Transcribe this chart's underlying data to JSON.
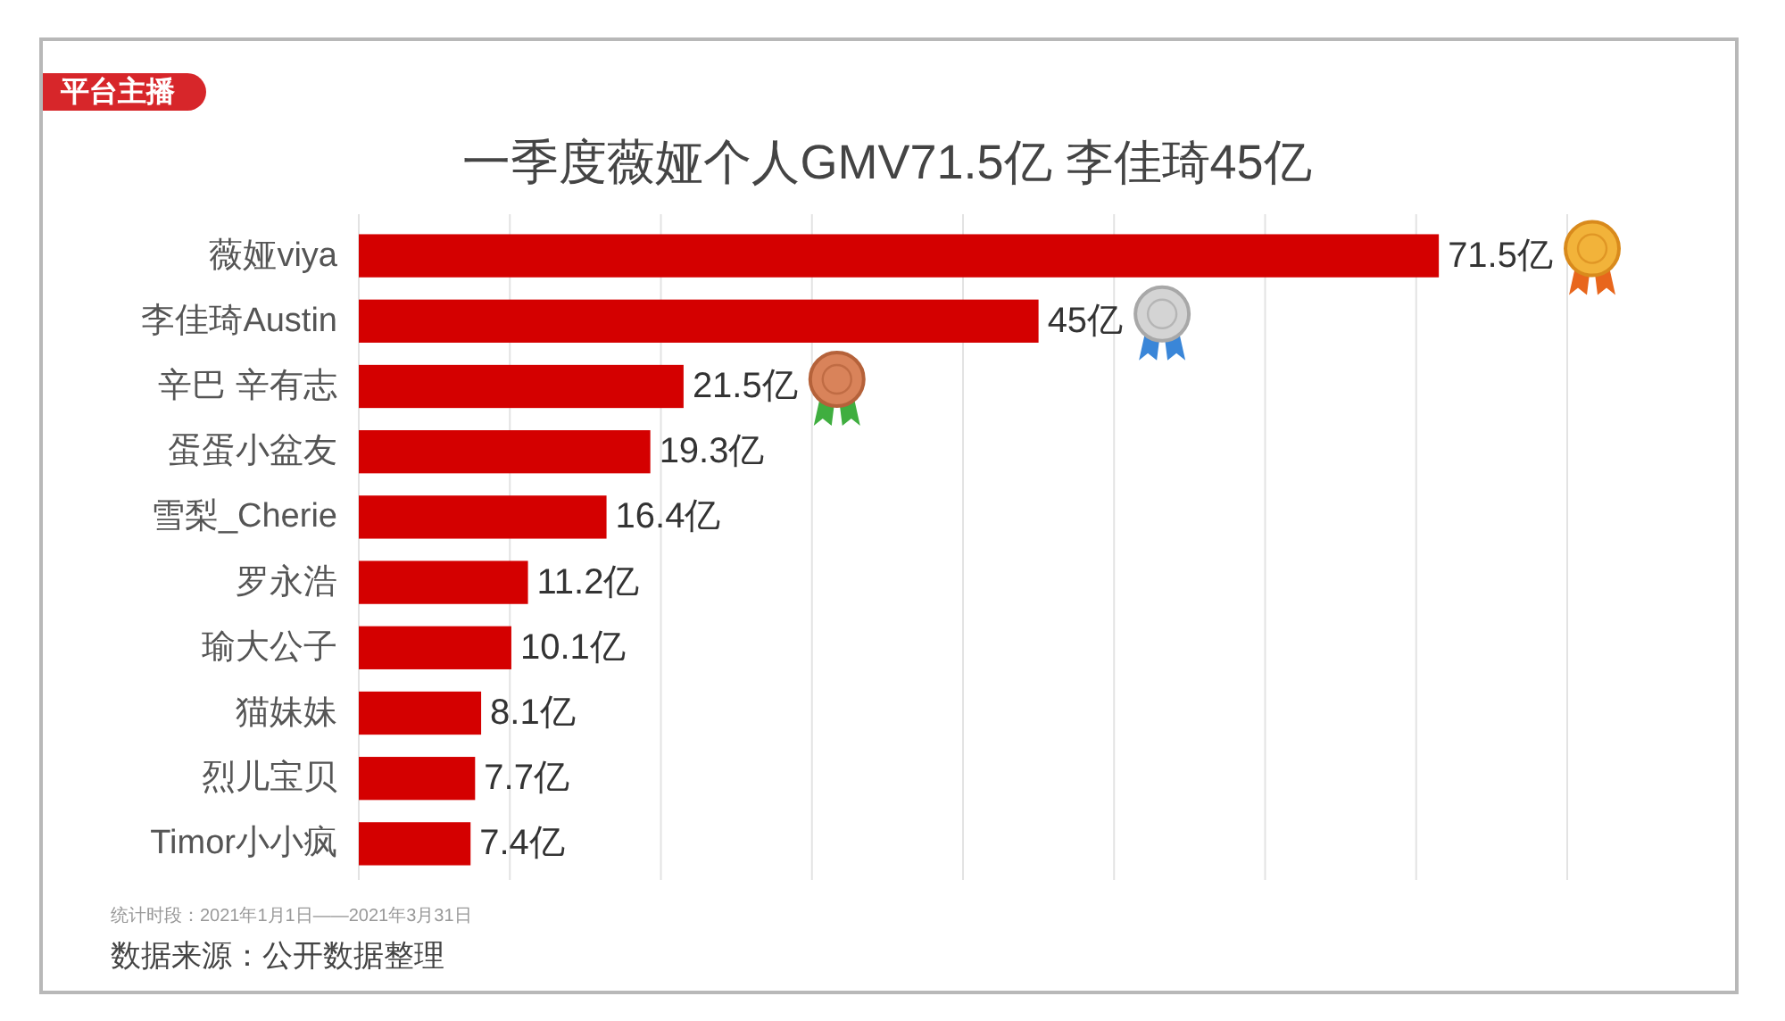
{
  "chart_data": {
    "type": "bar",
    "orientation": "horizontal",
    "title": "一季度薇娅个人GMV71.5亿 李佳琦45亿",
    "categories": [
      "薇娅viya",
      "李佳琦Austin",
      "辛巴 辛有志",
      "蛋蛋小盆友",
      "雪梨_Cherie",
      "罗永浩",
      "瑜大公子",
      "猫妹妹",
      "烈儿宝贝",
      "Timor小小疯"
    ],
    "values": [
      71.5,
      45,
      21.5,
      19.3,
      16.4,
      11.2,
      10.1,
      8.1,
      7.7,
      7.4
    ],
    "value_labels": [
      "71.5亿",
      "45亿",
      "21.5亿",
      "19.3亿",
      "16.4亿",
      "11.2亿",
      "10.1亿",
      "8.1亿",
      "7.7亿",
      "7.4亿"
    ],
    "color": "#d40000",
    "xlim": [
      0,
      80
    ],
    "xticks": [
      {
        "value": 0,
        "label": null
      },
      {
        "value": 10,
        "label": null
      },
      {
        "value": 20,
        "label": null
      },
      {
        "value": 30,
        "label": null
      },
      {
        "value": 40,
        "label": null
      },
      {
        "value": 50,
        "label": null
      },
      {
        "value": 60,
        "label": null
      },
      {
        "value": 70,
        "label": null
      },
      {
        "value": 80,
        "label": null
      }
    ],
    "grid": "x",
    "tick_labels": "y",
    "annotations": [
      "平台主播",
      "统计时段：2021年1月1日——2021年3月31日",
      "数据来源：公开数据整理"
    ]
  }
}
